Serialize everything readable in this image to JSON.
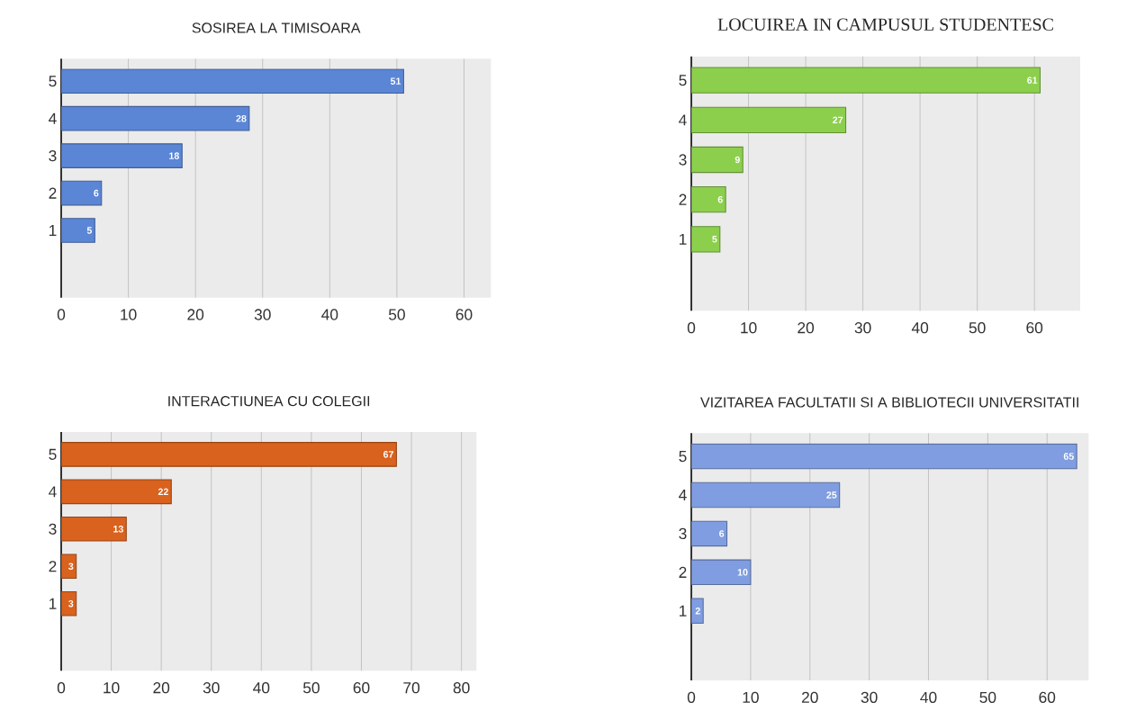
{
  "chart_data": [
    {
      "type": "bar",
      "orientation": "horizontal",
      "title": "SOSIREA LA TIMISOARA",
      "categories": [
        "5",
        "4",
        "3",
        "2",
        "1"
      ],
      "values": [
        51,
        28,
        18,
        6,
        5
      ],
      "color": "#5b86d6",
      "xlim": [
        0,
        64
      ],
      "xticks": [
        0,
        10,
        20,
        30,
        40,
        50,
        60
      ],
      "grid": "x",
      "data_labels": true
    },
    {
      "type": "bar",
      "orientation": "horizontal",
      "title": "LOCUIREA IN CAMPUSUL STUDENTESC",
      "categories": [
        "5",
        "4",
        "3",
        "2",
        "1"
      ],
      "values": [
        61,
        27,
        9,
        6,
        5
      ],
      "color": "#8ccf4d",
      "xlim": [
        0,
        68
      ],
      "xticks": [
        0,
        10,
        20,
        30,
        40,
        50,
        60
      ],
      "grid": "x",
      "data_labels": true
    },
    {
      "type": "bar",
      "orientation": "horizontal",
      "title": "INTERACTIUNEA CU COLEGII",
      "categories": [
        "5",
        "4",
        "3",
        "2",
        "1"
      ],
      "values": [
        67,
        22,
        13,
        3,
        3
      ],
      "color": "#d8621e",
      "xlim": [
        0,
        83
      ],
      "xticks": [
        0,
        10,
        20,
        30,
        40,
        50,
        60,
        70,
        80
      ],
      "grid": "x",
      "data_labels": true
    },
    {
      "type": "bar",
      "orientation": "horizontal",
      "title": "VIZITAREA FACULTATII SI A BIBLIOTECII UNIVERSITATII",
      "categories": [
        "5",
        "4",
        "3",
        "2",
        "1"
      ],
      "values": [
        65,
        25,
        6,
        10,
        2
      ],
      "color": "#7f9de0",
      "xlim": [
        0,
        67
      ],
      "xticks": [
        0,
        10,
        20,
        30,
        40,
        50,
        60
      ],
      "grid": "x",
      "data_labels": true
    }
  ]
}
